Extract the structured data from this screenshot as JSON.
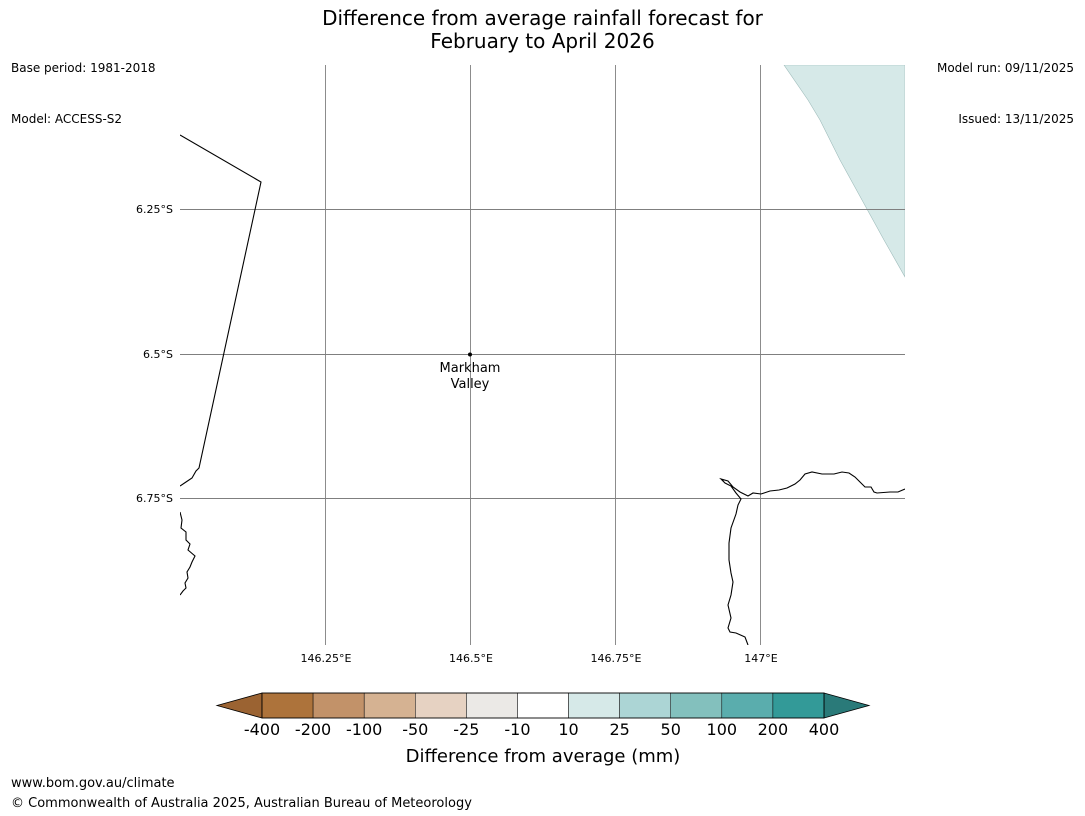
{
  "header": {
    "title_line1": "Difference from average rainfall forecast for",
    "title_line2": "February to April 2026",
    "base_period": "Base period: 1981-2018",
    "model": "Model: ACCESS-S2",
    "model_run": "Model run: 09/11/2025",
    "issued": "Issued: 13/11/2025"
  },
  "map": {
    "lat_labels": [
      "6.25°S",
      "6.5°S",
      "6.75°S"
    ],
    "lon_labels": [
      "146.25°E",
      "146.5°E",
      "146.75°E",
      "147°E"
    ],
    "place": {
      "name_line1": "Markham",
      "name_line2": "Valley"
    },
    "shaded_region_category": "10 to 25",
    "colors": {
      "coastline": "#000000",
      "gridline": "#7f7f7f",
      "shaded_region": "#d6e9e8"
    }
  },
  "colorbar": {
    "label": "Difference from average (mm)",
    "ticks": [
      "-400",
      "-200",
      "-100",
      "-50",
      "-25",
      "-10",
      "10",
      "25",
      "50",
      "100",
      "200",
      "400"
    ],
    "colors": [
      "#9b6332",
      "#ad733b",
      "#c29269",
      "#d5b292",
      "#e6d2c2",
      "#ebe9e6",
      "#ffffff",
      "#d6e9e8",
      "#acd5d5",
      "#83c0bd",
      "#5aadad",
      "#339a98",
      "#2a7a79"
    ]
  },
  "footer": {
    "url": "www.bom.gov.au/climate",
    "copyright": "© Commonwealth of Australia 2025, Australian Bureau of Meteorology"
  }
}
